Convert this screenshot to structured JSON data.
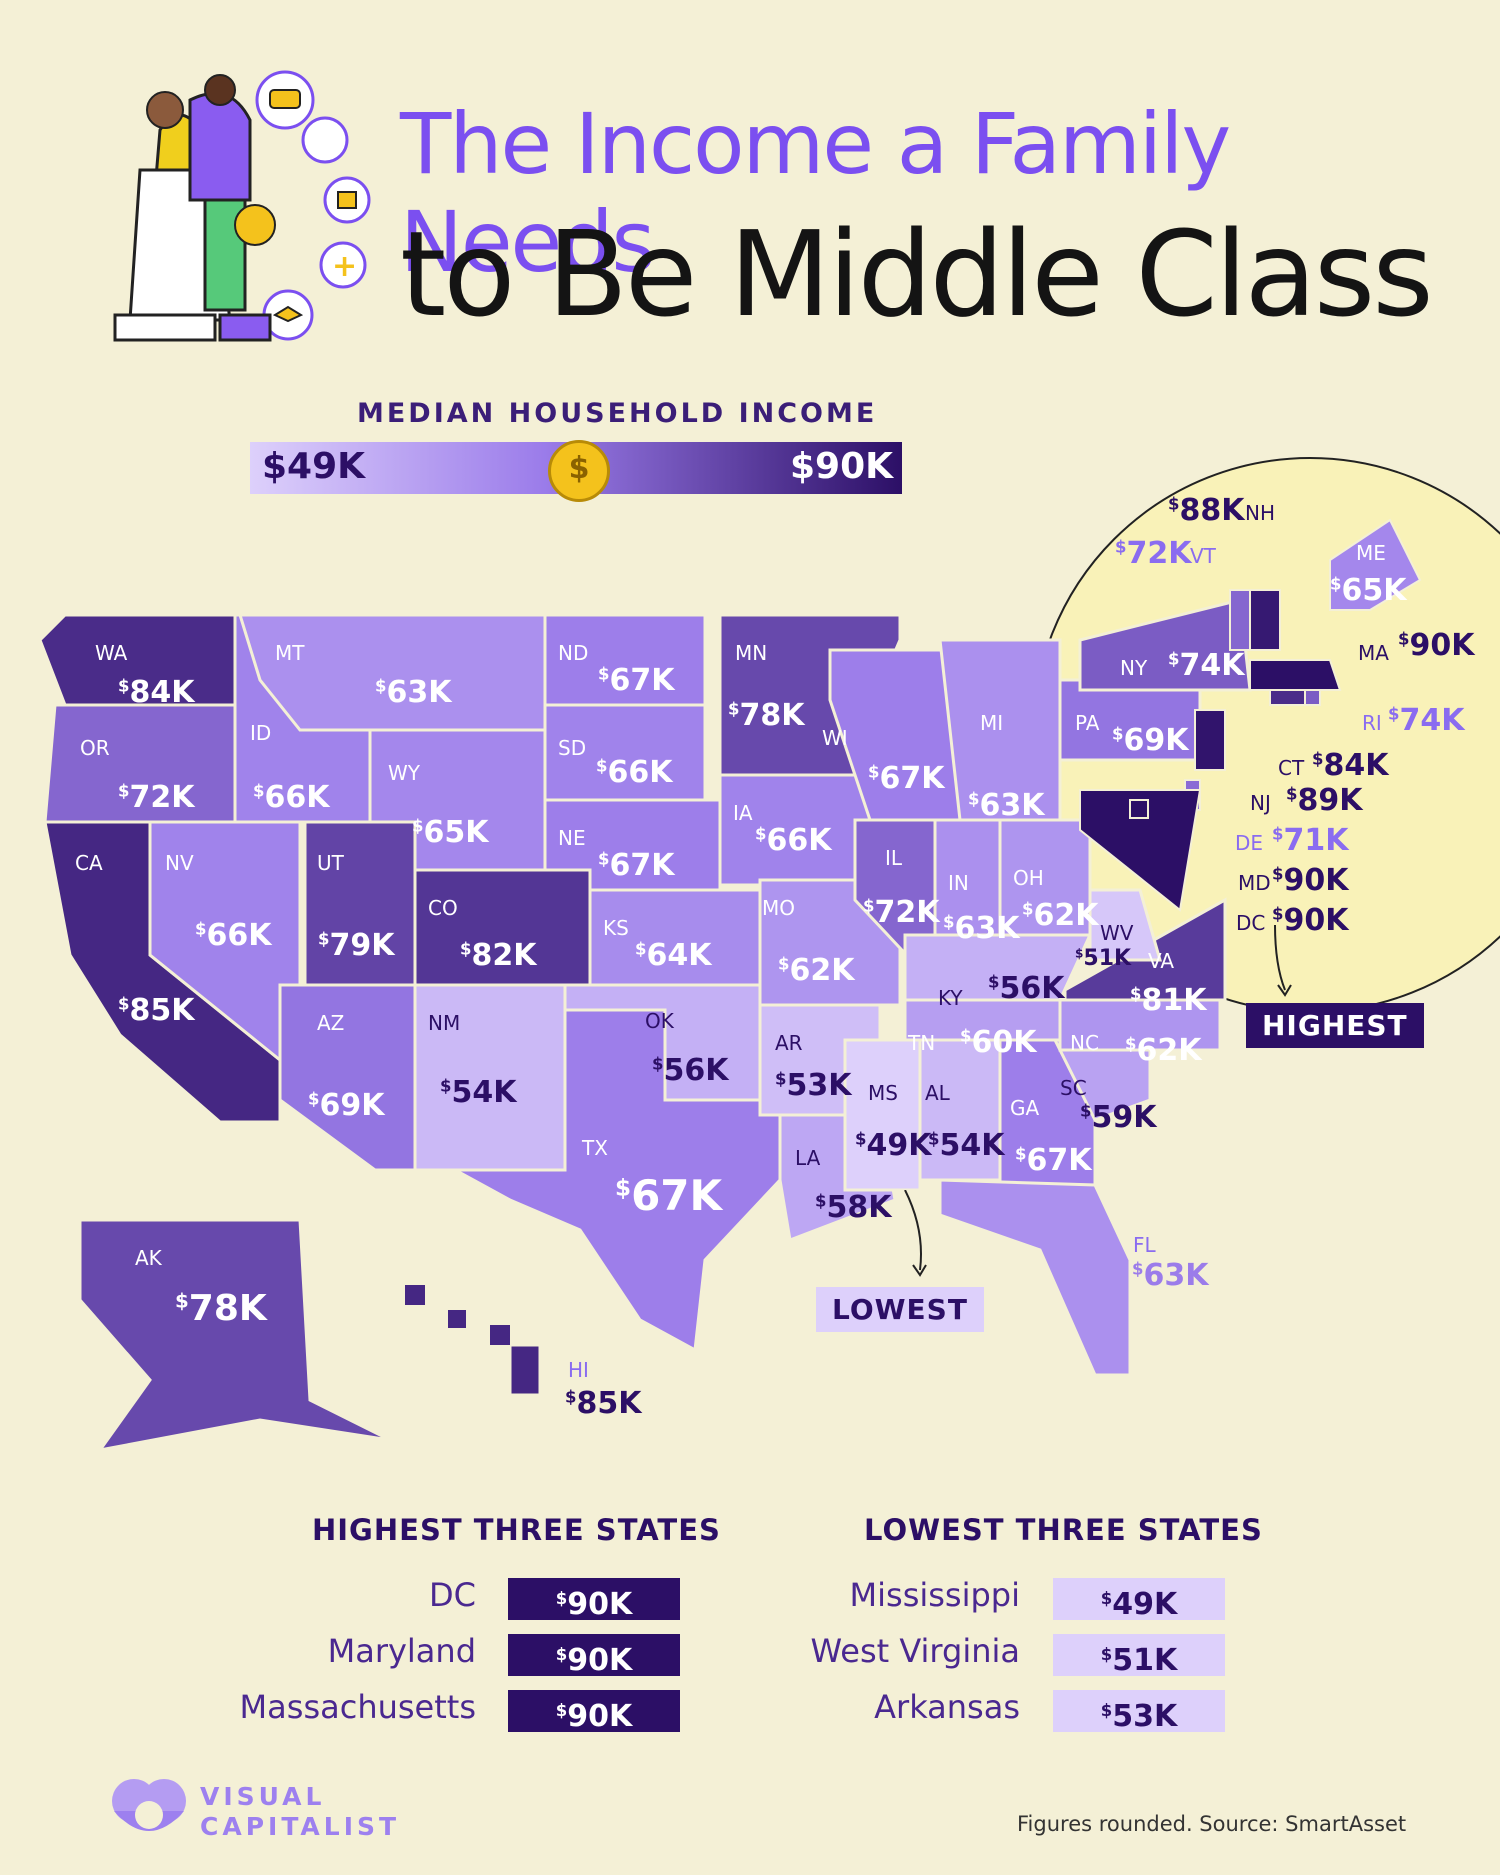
{
  "title": {
    "line1": "The Income a Family Needs",
    "line2": "to Be Middle Class"
  },
  "legend": {
    "title": "MEDIAN HOUSEHOLD INCOME",
    "min": "$49K",
    "max": "$90K",
    "coin_symbol": "$"
  },
  "colors": {
    "background": "#f4f0d6",
    "low": "#ddd0fb",
    "mid": "#9b7cea",
    "high": "#2c0f66",
    "title_accent": "#7b4ff0"
  },
  "map_data": {
    "states": [
      {
        "abbr": "WA",
        "value": "84K"
      },
      {
        "abbr": "OR",
        "value": "72K"
      },
      {
        "abbr": "CA",
        "value": "85K"
      },
      {
        "abbr": "NV",
        "value": "66K"
      },
      {
        "abbr": "ID",
        "value": "66K"
      },
      {
        "abbr": "MT",
        "value": "63K"
      },
      {
        "abbr": "WY",
        "value": "65K"
      },
      {
        "abbr": "UT",
        "value": "79K"
      },
      {
        "abbr": "AZ",
        "value": "69K"
      },
      {
        "abbr": "CO",
        "value": "82K"
      },
      {
        "abbr": "NM",
        "value": "54K"
      },
      {
        "abbr": "ND",
        "value": "67K"
      },
      {
        "abbr": "SD",
        "value": "66K"
      },
      {
        "abbr": "NE",
        "value": "67K"
      },
      {
        "abbr": "KS",
        "value": "64K"
      },
      {
        "abbr": "OK",
        "value": "56K"
      },
      {
        "abbr": "TX",
        "value": "67K"
      },
      {
        "abbr": "MN",
        "value": "78K"
      },
      {
        "abbr": "IA",
        "value": "66K"
      },
      {
        "abbr": "MO",
        "value": "62K"
      },
      {
        "abbr": "AR",
        "value": "53K"
      },
      {
        "abbr": "LA",
        "value": "58K"
      },
      {
        "abbr": "WI",
        "value": "67K"
      },
      {
        "abbr": "IL",
        "value": "72K"
      },
      {
        "abbr": "MI",
        "value": "63K"
      },
      {
        "abbr": "IN",
        "value": "63K"
      },
      {
        "abbr": "OH",
        "value": "62K"
      },
      {
        "abbr": "KY",
        "value": "56K"
      },
      {
        "abbr": "TN",
        "value": "60K"
      },
      {
        "abbr": "MS",
        "value": "49K"
      },
      {
        "abbr": "AL",
        "value": "54K"
      },
      {
        "abbr": "GA",
        "value": "67K"
      },
      {
        "abbr": "FL",
        "value": "63K"
      },
      {
        "abbr": "SC",
        "value": "59K"
      },
      {
        "abbr": "NC",
        "value": "62K"
      },
      {
        "abbr": "VA",
        "value": "81K"
      },
      {
        "abbr": "WV",
        "value": "51K"
      },
      {
        "abbr": "PA",
        "value": "69K"
      },
      {
        "abbr": "NY",
        "value": "74K"
      },
      {
        "abbr": "AK",
        "value": "78K"
      },
      {
        "abbr": "HI",
        "value": "85K"
      },
      {
        "abbr": "ME",
        "value": "65K"
      },
      {
        "abbr": "NH",
        "value": "88K"
      },
      {
        "abbr": "VT",
        "value": "72K"
      },
      {
        "abbr": "MA",
        "value": "90K"
      },
      {
        "abbr": "RI",
        "value": "74K"
      },
      {
        "abbr": "CT",
        "value": "84K"
      },
      {
        "abbr": "NJ",
        "value": "89K"
      },
      {
        "abbr": "DE",
        "value": "71K"
      },
      {
        "abbr": "MD",
        "value": "90K"
      },
      {
        "abbr": "DC",
        "value": "90K"
      }
    ],
    "highest_tag": "HIGHEST",
    "lowest_tag": "LOWEST"
  },
  "highest": {
    "title": "HIGHEST THREE STATES",
    "rows": [
      {
        "name": "DC",
        "value": "90K"
      },
      {
        "name": "Maryland",
        "value": "90K"
      },
      {
        "name": "Massachusetts",
        "value": "90K"
      }
    ]
  },
  "lowest": {
    "title": "LOWEST THREE STATES",
    "rows": [
      {
        "name": "Mississippi",
        "value": "49K"
      },
      {
        "name": "West Virginia",
        "value": "51K"
      },
      {
        "name": "Arkansas",
        "value": "53K"
      }
    ]
  },
  "currency_symbol": "$",
  "logo": {
    "line1": "VISUAL",
    "line2": "CAPITALIST"
  },
  "source": "Figures rounded. Source: SmartAsset"
}
